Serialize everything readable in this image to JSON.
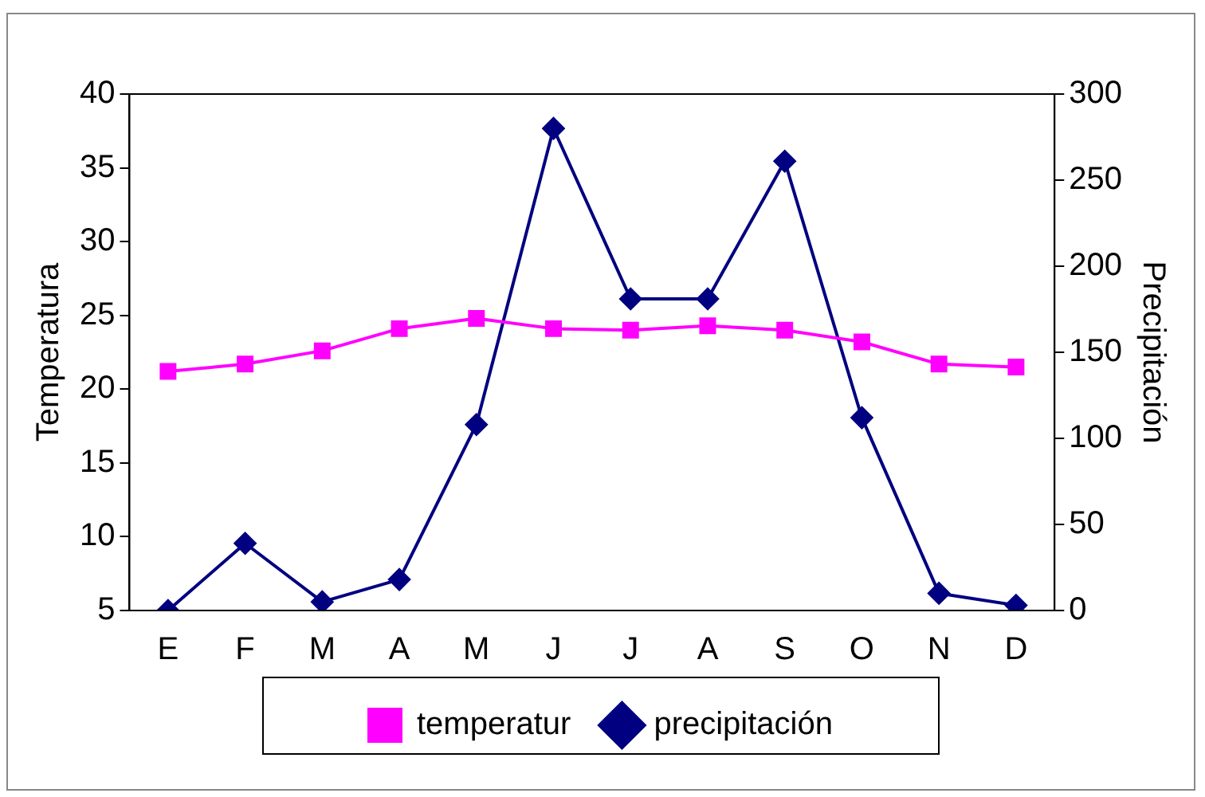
{
  "chart_data": {
    "type": "line",
    "ylabel": "Temperatura",
    "y2label": "Precipitación",
    "categories": [
      "E",
      "F",
      "M",
      "A",
      "M",
      "J",
      "J",
      "A",
      "S",
      "O",
      "N",
      "D"
    ],
    "series": [
      {
        "name": "temperatur",
        "color": "#ff00ff",
        "marker": "square",
        "values": [
          21.2,
          21.7,
          22.6,
          24.1,
          24.8,
          24.1,
          24,
          24.3,
          24,
          23.2,
          21.7,
          21.5
        ]
      },
      {
        "name": "precipitación",
        "color": "#000080",
        "marker": "diamond",
        "axis": "y2",
        "values": [
          0,
          39,
          5,
          18,
          108,
          280,
          181,
          181,
          261,
          112,
          10,
          3
        ]
      }
    ],
    "ylim": [
      5,
      40
    ],
    "yticks": [
      5,
      10,
      15,
      20,
      25,
      30,
      35,
      40
    ],
    "y2lim": [
      0,
      300
    ],
    "y2ticks": [
      0,
      50,
      100,
      150,
      200,
      250,
      300
    ],
    "grid": false,
    "legend": "bottom",
    "line_style": "solid"
  }
}
